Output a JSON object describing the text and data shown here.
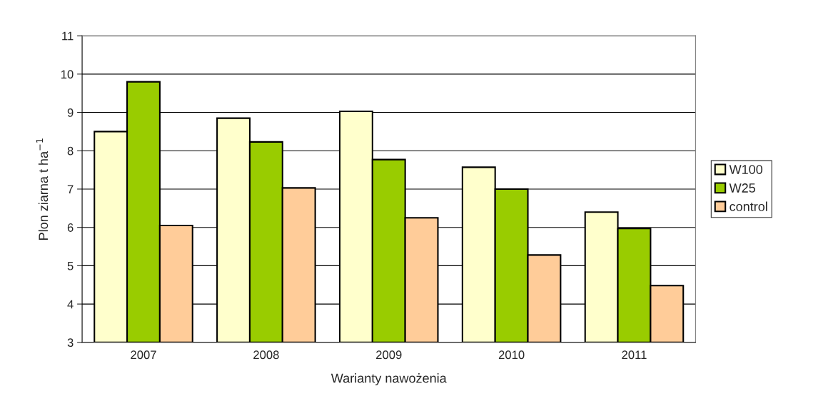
{
  "chart_data": {
    "type": "bar",
    "xlabel": "Warianty nawożenia",
    "ylabel": "Plon ziarna t ha$^{−1}$",
    "categories": [
      "2007",
      "2008",
      "2009",
      "2010",
      "2011"
    ],
    "series": [
      {
        "name": "W100",
        "color": "#ffffcc",
        "values": [
          8.5,
          8.85,
          9.03,
          7.57,
          6.4
        ]
      },
      {
        "name": "W25",
        "color": "#99cc00",
        "values": [
          9.8,
          8.23,
          7.77,
          7.0,
          5.97
        ]
      },
      {
        "name": "control",
        "color": "#ffcc99",
        "values": [
          6.05,
          7.03,
          6.25,
          5.28,
          4.48
        ]
      }
    ],
    "ylim": [
      3,
      11
    ],
    "yticks": [
      3,
      4,
      5,
      6,
      7,
      8,
      9,
      10,
      11
    ],
    "grid": "y",
    "legend": "right"
  }
}
